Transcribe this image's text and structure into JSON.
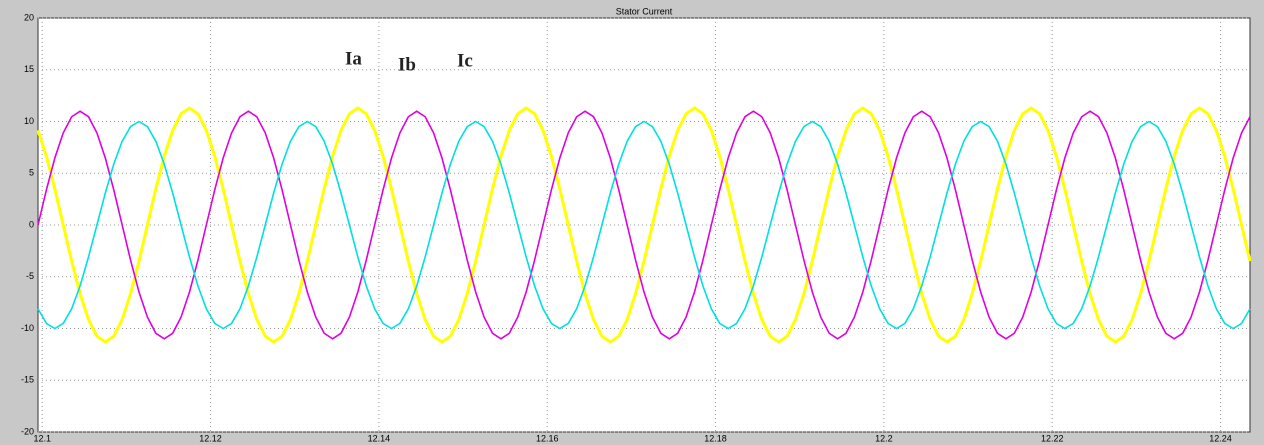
{
  "chart_data": {
    "type": "line",
    "title": "Stator Current",
    "x": [
      12.0995,
      12.1005,
      12.1015,
      12.1025,
      12.1035,
      12.1045,
      12.1055,
      12.1065,
      12.1075,
      12.1085,
      12.1095,
      12.1105,
      12.1115,
      12.1125,
      12.1135,
      12.1145,
      12.1155,
      12.1165,
      12.1175,
      12.1185,
      12.1195,
      12.1205,
      12.1215,
      12.1225,
      12.1235,
      12.1245,
      12.1255,
      12.1265,
      12.1275,
      12.1285,
      12.1295,
      12.1305,
      12.1315,
      12.1325,
      12.1335,
      12.1345,
      12.1355,
      12.1365,
      12.1375,
      12.1385,
      12.1395,
      12.1405,
      12.1415,
      12.1425,
      12.1435,
      12.1445,
      12.1455,
      12.1465,
      12.1475,
      12.1485,
      12.1495,
      12.1505,
      12.1515,
      12.1525,
      12.1535,
      12.1545,
      12.1555,
      12.1565,
      12.1575,
      12.1585,
      12.1595,
      12.1605,
      12.1615,
      12.1625,
      12.1635,
      12.1645,
      12.1655,
      12.1665,
      12.1675,
      12.1685,
      12.1695,
      12.1705,
      12.1715,
      12.1725,
      12.1735,
      12.1745,
      12.1755,
      12.1765,
      12.1775,
      12.1785,
      12.1795,
      12.1805,
      12.1815,
      12.1825,
      12.1835,
      12.1845,
      12.1855,
      12.1865,
      12.1875,
      12.1885,
      12.1895,
      12.1905,
      12.1915,
      12.1925,
      12.1935,
      12.1945,
      12.1955,
      12.1965,
      12.1975,
      12.1985,
      12.1995,
      12.2005,
      12.2015,
      12.2025,
      12.2035,
      12.2045,
      12.2055,
      12.2065,
      12.2075,
      12.2085,
      12.2095,
      12.2105,
      12.2115,
      12.2125,
      12.2135,
      12.2145,
      12.2155,
      12.2165,
      12.2175,
      12.2185,
      12.2195,
      12.2205,
      12.2215,
      12.2225,
      12.2235,
      12.2245,
      12.2255,
      12.2265,
      12.2275,
      12.2285,
      12.2295,
      12.2305,
      12.2315,
      12.2325,
      12.2335,
      12.2345,
      12.2355,
      12.2365,
      12.2375,
      12.2385,
      12.2395,
      12.2405,
      12.2415,
      12.2425,
      12.2435
    ],
    "series": [
      {
        "name": "Ia",
        "color": "#ffff00",
        "values": [
          9.14,
          6.64,
          3.49,
          0,
          -3.49,
          -6.64,
          -9.14,
          -10.75,
          -11.3,
          -10.75,
          -9.14,
          -6.64,
          -3.49,
          0,
          3.49,
          6.64,
          9.14,
          10.75,
          11.3,
          10.75,
          9.14,
          6.64,
          3.49,
          0,
          -3.49,
          -6.64,
          -9.14,
          -10.75,
          -11.3,
          -10.75,
          -9.14,
          -6.64,
          -3.49,
          0,
          3.49,
          6.64,
          9.14,
          10.75,
          11.3,
          10.75,
          9.14,
          6.64,
          3.49,
          0,
          -3.49,
          -6.64,
          -9.14,
          -10.75,
          -11.3,
          -10.75,
          -9.14,
          -6.64,
          -3.49,
          0,
          3.49,
          6.64,
          9.14,
          10.75,
          11.3,
          10.75,
          9.14,
          6.64,
          3.49,
          0,
          -3.49,
          -6.64,
          -9.14,
          -10.75,
          -11.3,
          -10.75,
          -9.14,
          -6.64,
          -3.49,
          0,
          3.49,
          6.64,
          9.14,
          10.75,
          11.3,
          10.75,
          9.14,
          6.64,
          3.49,
          0,
          -3.49,
          -6.64,
          -9.14,
          -10.75,
          -11.3,
          -10.75,
          -9.14,
          -6.64,
          -3.49,
          0,
          3.49,
          6.64,
          9.14,
          10.75,
          11.3,
          10.75,
          9.14,
          6.64,
          3.49,
          0,
          -3.49,
          -6.64,
          -9.14,
          -10.75,
          -11.3,
          -10.75,
          -9.14,
          -6.64,
          -3.49,
          0,
          3.49,
          6.64,
          9.14,
          10.75,
          11.3,
          10.75,
          9.14,
          6.64,
          3.49,
          0,
          -3.49,
          -6.64,
          -9.14,
          -10.75,
          -11.3,
          -10.75,
          -9.14,
          -6.64,
          -3.49,
          0,
          3.49,
          6.64,
          9.14,
          10.75,
          11.3,
          10.75,
          9.14,
          6.64,
          3.49,
          0,
          -3.49
        ]
      },
      {
        "name": "Ib",
        "color": "#e000e0",
        "values": [
          0,
          3.4,
          6.47,
          8.9,
          10.46,
          11,
          10.46,
          8.9,
          6.47,
          3.4,
          0,
          -3.4,
          -6.47,
          -8.9,
          -10.46,
          -11,
          -10.46,
          -8.9,
          -6.47,
          -3.4,
          0,
          3.4,
          6.47,
          8.9,
          10.46,
          11,
          10.46,
          8.9,
          6.47,
          3.4,
          0,
          -3.4,
          -6.47,
          -8.9,
          -10.46,
          -11,
          -10.46,
          -8.9,
          -6.47,
          -3.4,
          0,
          3.4,
          6.47,
          8.9,
          10.46,
          11,
          10.46,
          8.9,
          6.47,
          3.4,
          0,
          -3.4,
          -6.47,
          -8.9,
          -10.46,
          -11,
          -10.46,
          -8.9,
          -6.47,
          -3.4,
          0,
          3.4,
          6.47,
          8.9,
          10.46,
          11,
          10.46,
          8.9,
          6.47,
          3.4,
          0,
          -3.4,
          -6.47,
          -8.9,
          -10.46,
          -11,
          -10.46,
          -8.9,
          -6.47,
          -3.4,
          0,
          3.4,
          6.47,
          8.9,
          10.46,
          11,
          10.46,
          8.9,
          6.47,
          3.4,
          0,
          -3.4,
          -6.47,
          -8.9,
          -10.46,
          -11,
          -10.46,
          -8.9,
          -6.47,
          -3.4,
          0,
          3.4,
          6.47,
          8.9,
          10.46,
          11,
          10.46,
          8.9,
          6.47,
          3.4,
          0,
          -3.4,
          -6.47,
          -8.9,
          -10.46,
          -11,
          -10.46,
          -8.9,
          -6.47,
          -3.4,
          0,
          3.4,
          6.47,
          8.9,
          10.46,
          11,
          10.46,
          8.9,
          6.47,
          3.4,
          0,
          -3.4,
          -6.47,
          -8.9,
          -10.46,
          -11,
          -10.46,
          -8.9,
          -6.47,
          -3.4,
          0,
          3.4,
          6.47,
          8.9,
          10.46
        ]
      },
      {
        "name": "Ic",
        "color": "#00e0e0",
        "values": [
          -8.09,
          -9.51,
          -10,
          -9.51,
          -8.09,
          -5.88,
          -3.09,
          0,
          3.09,
          5.88,
          8.09,
          9.51,
          10,
          9.51,
          8.09,
          5.88,
          3.09,
          0,
          -3.09,
          -5.88,
          -8.09,
          -9.51,
          -10,
          -9.51,
          -8.09,
          -5.88,
          -3.09,
          0,
          3.09,
          5.88,
          8.09,
          9.51,
          10,
          9.51,
          8.09,
          5.88,
          3.09,
          0,
          -3.09,
          -5.88,
          -8.09,
          -9.51,
          -10,
          -9.51,
          -8.09,
          -5.88,
          -3.09,
          0,
          3.09,
          5.88,
          8.09,
          9.51,
          10,
          9.51,
          8.09,
          5.88,
          3.09,
          0,
          -3.09,
          -5.88,
          -8.09,
          -9.51,
          -10,
          -9.51,
          -8.09,
          -5.88,
          -3.09,
          0,
          3.09,
          5.88,
          8.09,
          9.51,
          10,
          9.51,
          8.09,
          5.88,
          3.09,
          0,
          -3.09,
          -5.88,
          -8.09,
          -9.51,
          -10,
          -9.51,
          -8.09,
          -5.88,
          -3.09,
          0,
          3.09,
          5.88,
          8.09,
          9.51,
          10,
          9.51,
          8.09,
          5.88,
          3.09,
          0,
          -3.09,
          -5.88,
          -8.09,
          -9.51,
          -10,
          -9.51,
          -8.09,
          -5.88,
          -3.09,
          0,
          3.09,
          5.88,
          8.09,
          9.51,
          10,
          9.51,
          8.09,
          5.88,
          3.09,
          0,
          -3.09,
          -5.88,
          -8.09,
          -9.51,
          -10,
          -9.51,
          -8.09,
          -5.88,
          -3.09,
          0,
          3.09,
          5.88,
          8.09,
          9.51,
          10,
          9.51,
          8.09,
          5.88,
          3.09,
          0,
          -3.09,
          -5.88,
          -8.09,
          -9.51,
          -10,
          -9.51,
          -8.09
        ]
      }
    ],
    "xlim": [
      12.0995,
      12.2435
    ],
    "ylim": [
      -20,
      20
    ],
    "xticks": [
      12.1,
      12.12,
      12.14,
      12.16,
      12.18,
      12.2,
      12.22,
      12.24
    ],
    "yticks": [
      -20,
      -15,
      -10,
      -5,
      0,
      5,
      10,
      15,
      20
    ],
    "grid": true
  }
}
